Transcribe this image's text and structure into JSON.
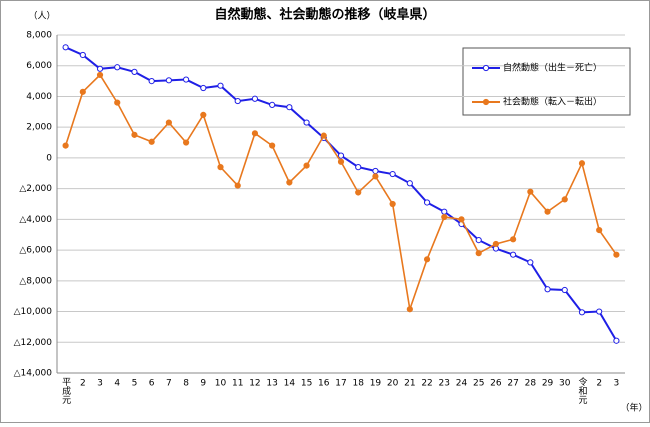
{
  "chart_data": {
    "type": "line",
    "title": "自然動態、社会動態の推移（岐阜県）",
    "y_unit": "（人）",
    "x_unit": "（年）",
    "categories": [
      "平成元",
      "2",
      "3",
      "4",
      "5",
      "6",
      "7",
      "8",
      "9",
      "10",
      "11",
      "12",
      "13",
      "14",
      "15",
      "16",
      "17",
      "18",
      "19",
      "20",
      "21",
      "22",
      "23",
      "24",
      "25",
      "26",
      "27",
      "28",
      "29",
      "30",
      "令和元",
      "2",
      "3"
    ],
    "series": [
      {
        "name": "自然動態（出生－死亡）",
        "color": "#1f1fe6",
        "marker": "open",
        "values": [
          7200,
          6700,
          5800,
          5900,
          5600,
          5000,
          5050,
          5100,
          4550,
          4700,
          3700,
          3850,
          3450,
          3300,
          2300,
          1300,
          150,
          -600,
          -850,
          -1050,
          -1650,
          -2900,
          -3500,
          -4300,
          -5350,
          -5900,
          -6300,
          -6800,
          -8550,
          -8600,
          -10050,
          -10000,
          -11900
        ]
      },
      {
        "name": "社会動態（転入－転出）",
        "color": "#e8781e",
        "marker": "filled",
        "values": [
          800,
          4300,
          5400,
          3600,
          1500,
          1050,
          2300,
          1000,
          2800,
          -600,
          -1800,
          1600,
          800,
          -1600,
          -500,
          1450,
          -250,
          -2250,
          -1200,
          -3000,
          -9850,
          -6600,
          -3850,
          -4000,
          -6200,
          -5600,
          -5300,
          -2200,
          -3500,
          -2700,
          -350,
          -4700,
          -6300
        ]
      }
    ],
    "ylim": [
      -14000,
      8000
    ],
    "yticks": [
      {
        "value": 8000,
        "label": "8,000"
      },
      {
        "value": 6000,
        "label": "6,000"
      },
      {
        "value": 4000,
        "label": "4,000"
      },
      {
        "value": 2000,
        "label": "2,000"
      },
      0,
      {
        "value": -2000,
        "label": "△2,000"
      },
      {
        "value": -4000,
        "label": "△4,000"
      },
      {
        "value": -6000,
        "label": "△6,000"
      },
      {
        "value": -8000,
        "label": "△8,000"
      },
      {
        "value": -10000,
        "label": "△10,000"
      },
      {
        "value": -12000,
        "label": "△12,000"
      },
      {
        "value": -14000,
        "label": "△14,000"
      }
    ],
    "grid": true
  }
}
